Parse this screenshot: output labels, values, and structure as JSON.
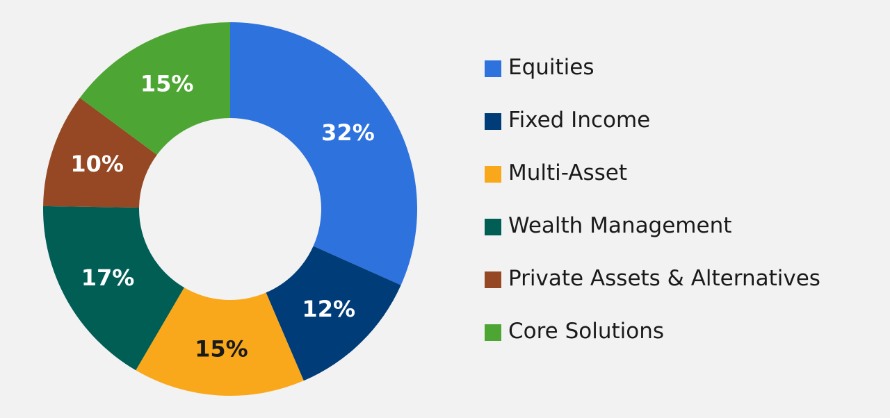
{
  "chart_data": {
    "type": "pie",
    "donut": true,
    "categories": [
      "Equities",
      "Fixed Income",
      "Multi-Asset",
      "Wealth Management",
      "Private Assets & Alternatives",
      "Core Solutions"
    ],
    "values": [
      32,
      12,
      15,
      17,
      10,
      15
    ],
    "data_labels": [
      "32%",
      "12%",
      "15%",
      "17%",
      "10%",
      "15%"
    ],
    "colors": [
      "#2e72de",
      "#003c78",
      "#f9a81b",
      "#005e55",
      "#954823",
      "#4da634"
    ],
    "label_colors": [
      "#ffffff",
      "#ffffff",
      "#1a1a1a",
      "#ffffff",
      "#ffffff",
      "#ffffff"
    ],
    "legend_position": "right"
  }
}
